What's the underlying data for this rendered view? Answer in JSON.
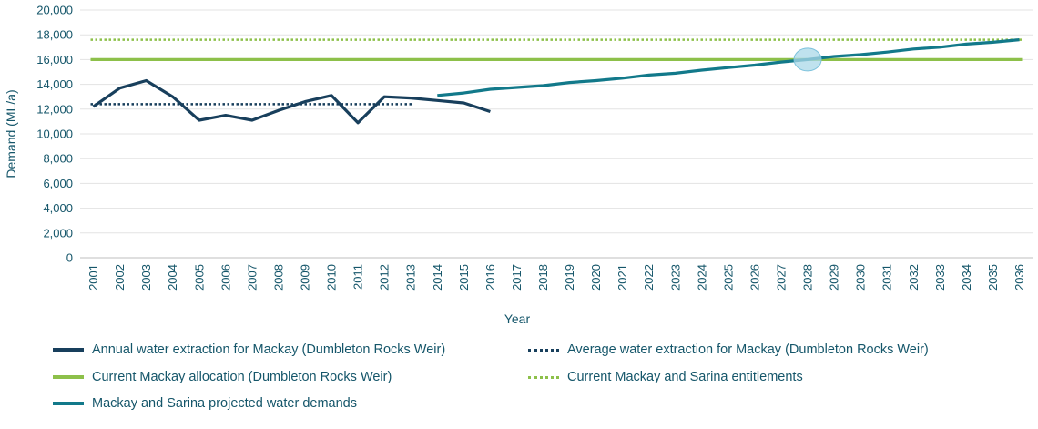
{
  "chart_data": {
    "type": "line",
    "xlabel": "Year",
    "ylabel": "Demand (ML/a)",
    "ylim": [
      0,
      20000
    ],
    "yticks": [
      0,
      2000,
      4000,
      6000,
      8000,
      10000,
      12000,
      14000,
      16000,
      18000,
      20000
    ],
    "ytick_labels": [
      "0",
      "2,000",
      "4,000",
      "6,000",
      "8,000",
      "10,000",
      "12,000",
      "14,000",
      "16,000",
      "18,000",
      "20,000"
    ],
    "categories": [
      "2001",
      "2002",
      "2003",
      "2004",
      "2005",
      "2006",
      "2007",
      "2008",
      "2009",
      "2010",
      "2011",
      "2012",
      "2013",
      "2014",
      "2015",
      "2016",
      "2017",
      "2018",
      "2019",
      "2020",
      "2021",
      "2022",
      "2023",
      "2024",
      "2025",
      "2026",
      "2027",
      "2028",
      "2029",
      "2030",
      "2031",
      "2032",
      "2033",
      "2034",
      "2035",
      "2036"
    ],
    "grid": true,
    "legend_position": "bottom",
    "series": [
      {
        "name": "Annual water extraction for Mackay (Dumbleton Rocks Weir)",
        "color": "#183f5c",
        "style": "solid",
        "x": [
          "2001",
          "2002",
          "2003",
          "2004",
          "2005",
          "2006",
          "2007",
          "2008",
          "2009",
          "2010",
          "2011",
          "2012",
          "2013",
          "2014",
          "2015",
          "2016"
        ],
        "values": [
          12200,
          13700,
          14300,
          13000,
          11100,
          11500,
          11100,
          11900,
          12600,
          13100,
          10900,
          13000,
          12900,
          12700,
          12500,
          11800
        ]
      },
      {
        "name": "Average water extraction for Mackay (Dumbleton Rocks Weir)",
        "color": "#183f5c",
        "style": "dotted",
        "x": [
          "2001",
          "2013"
        ],
        "values": [
          12400,
          12400
        ]
      },
      {
        "name": "Current Mackay allocation (Dumbleton Rocks Weir)",
        "color": "#8dc04a",
        "style": "solid",
        "x": [
          "2001",
          "2036"
        ],
        "values": [
          16000,
          16000
        ]
      },
      {
        "name": "Current Mackay and Sarina entitlements",
        "color": "#8dc04a",
        "style": "dotted",
        "x": [
          "2001",
          "2036"
        ],
        "values": [
          17600,
          17600
        ]
      },
      {
        "name": "Mackay and Sarina projected water demands",
        "color": "#12798a",
        "style": "solid",
        "x": [
          "2014",
          "2015",
          "2016",
          "2017",
          "2018",
          "2019",
          "2020",
          "2021",
          "2022",
          "2023",
          "2024",
          "2025",
          "2026",
          "2027",
          "2028",
          "2029",
          "2030",
          "2031",
          "2032",
          "2033",
          "2034",
          "2035",
          "2036"
        ],
        "values": [
          13100,
          13300,
          13600,
          13750,
          13900,
          14150,
          14300,
          14500,
          14750,
          14900,
          15150,
          15350,
          15550,
          15800,
          16000,
          16250,
          16400,
          16600,
          16850,
          17000,
          17250,
          17400,
          17600
        ]
      }
    ],
    "annotations": [
      {
        "type": "ellipse-marker",
        "x": "2028",
        "y": 16000,
        "color": "#a9d8e8"
      }
    ]
  },
  "legend": [
    {
      "label": "Annual water extraction for Mackay (Dumbleton Rocks Weir)",
      "color": "#183f5c",
      "style": "solid"
    },
    {
      "label": "Average water extraction for Mackay (Dumbleton Rocks Weir)",
      "color": "#183f5c",
      "style": "dotted"
    },
    {
      "label": "Current Mackay allocation (Dumbleton Rocks Weir)",
      "color": "#8dc04a",
      "style": "solid"
    },
    {
      "label": "Current Mackay and Sarina entitlements",
      "color": "#8dc04a",
      "style": "dotted"
    },
    {
      "label": "Mackay and Sarina projected water demands",
      "color": "#12798a",
      "style": "solid"
    }
  ]
}
